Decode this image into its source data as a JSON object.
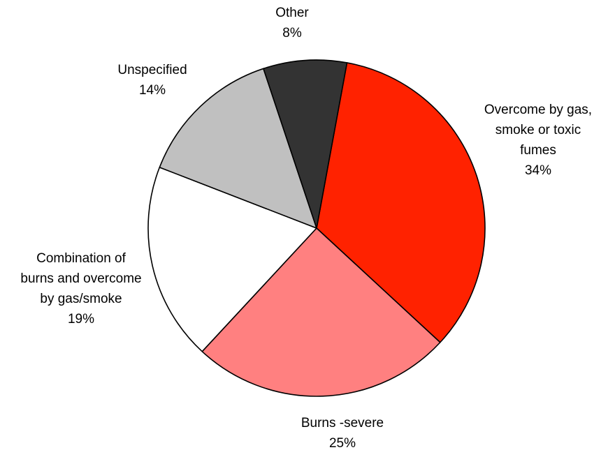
{
  "chart_data": {
    "type": "pie",
    "slices": [
      {
        "label_lines": [
          "Overcome by gas,",
          "smoke or toxic",
          "fumes"
        ],
        "percent_label": "34%",
        "value": 34,
        "color": "#ff2200"
      },
      {
        "label_lines": [
          "Burns -severe"
        ],
        "percent_label": "25%",
        "value": 25,
        "color": "#ff8080"
      },
      {
        "label_lines": [
          "Combination of",
          "burns and overcome",
          "by gas/smoke"
        ],
        "percent_label": "19%",
        "value": 19,
        "color": "#ffffff"
      },
      {
        "label_lines": [
          "Unspecified"
        ],
        "percent_label": "14%",
        "value": 14,
        "color": "#c0c0c0"
      },
      {
        "label_lines": [
          "Other"
        ],
        "percent_label": "8%",
        "value": 8,
        "color": "#333333"
      }
    ],
    "start_angle_deg": 79.6,
    "direction": "clockwise",
    "legend": "none",
    "labels": "outside"
  }
}
